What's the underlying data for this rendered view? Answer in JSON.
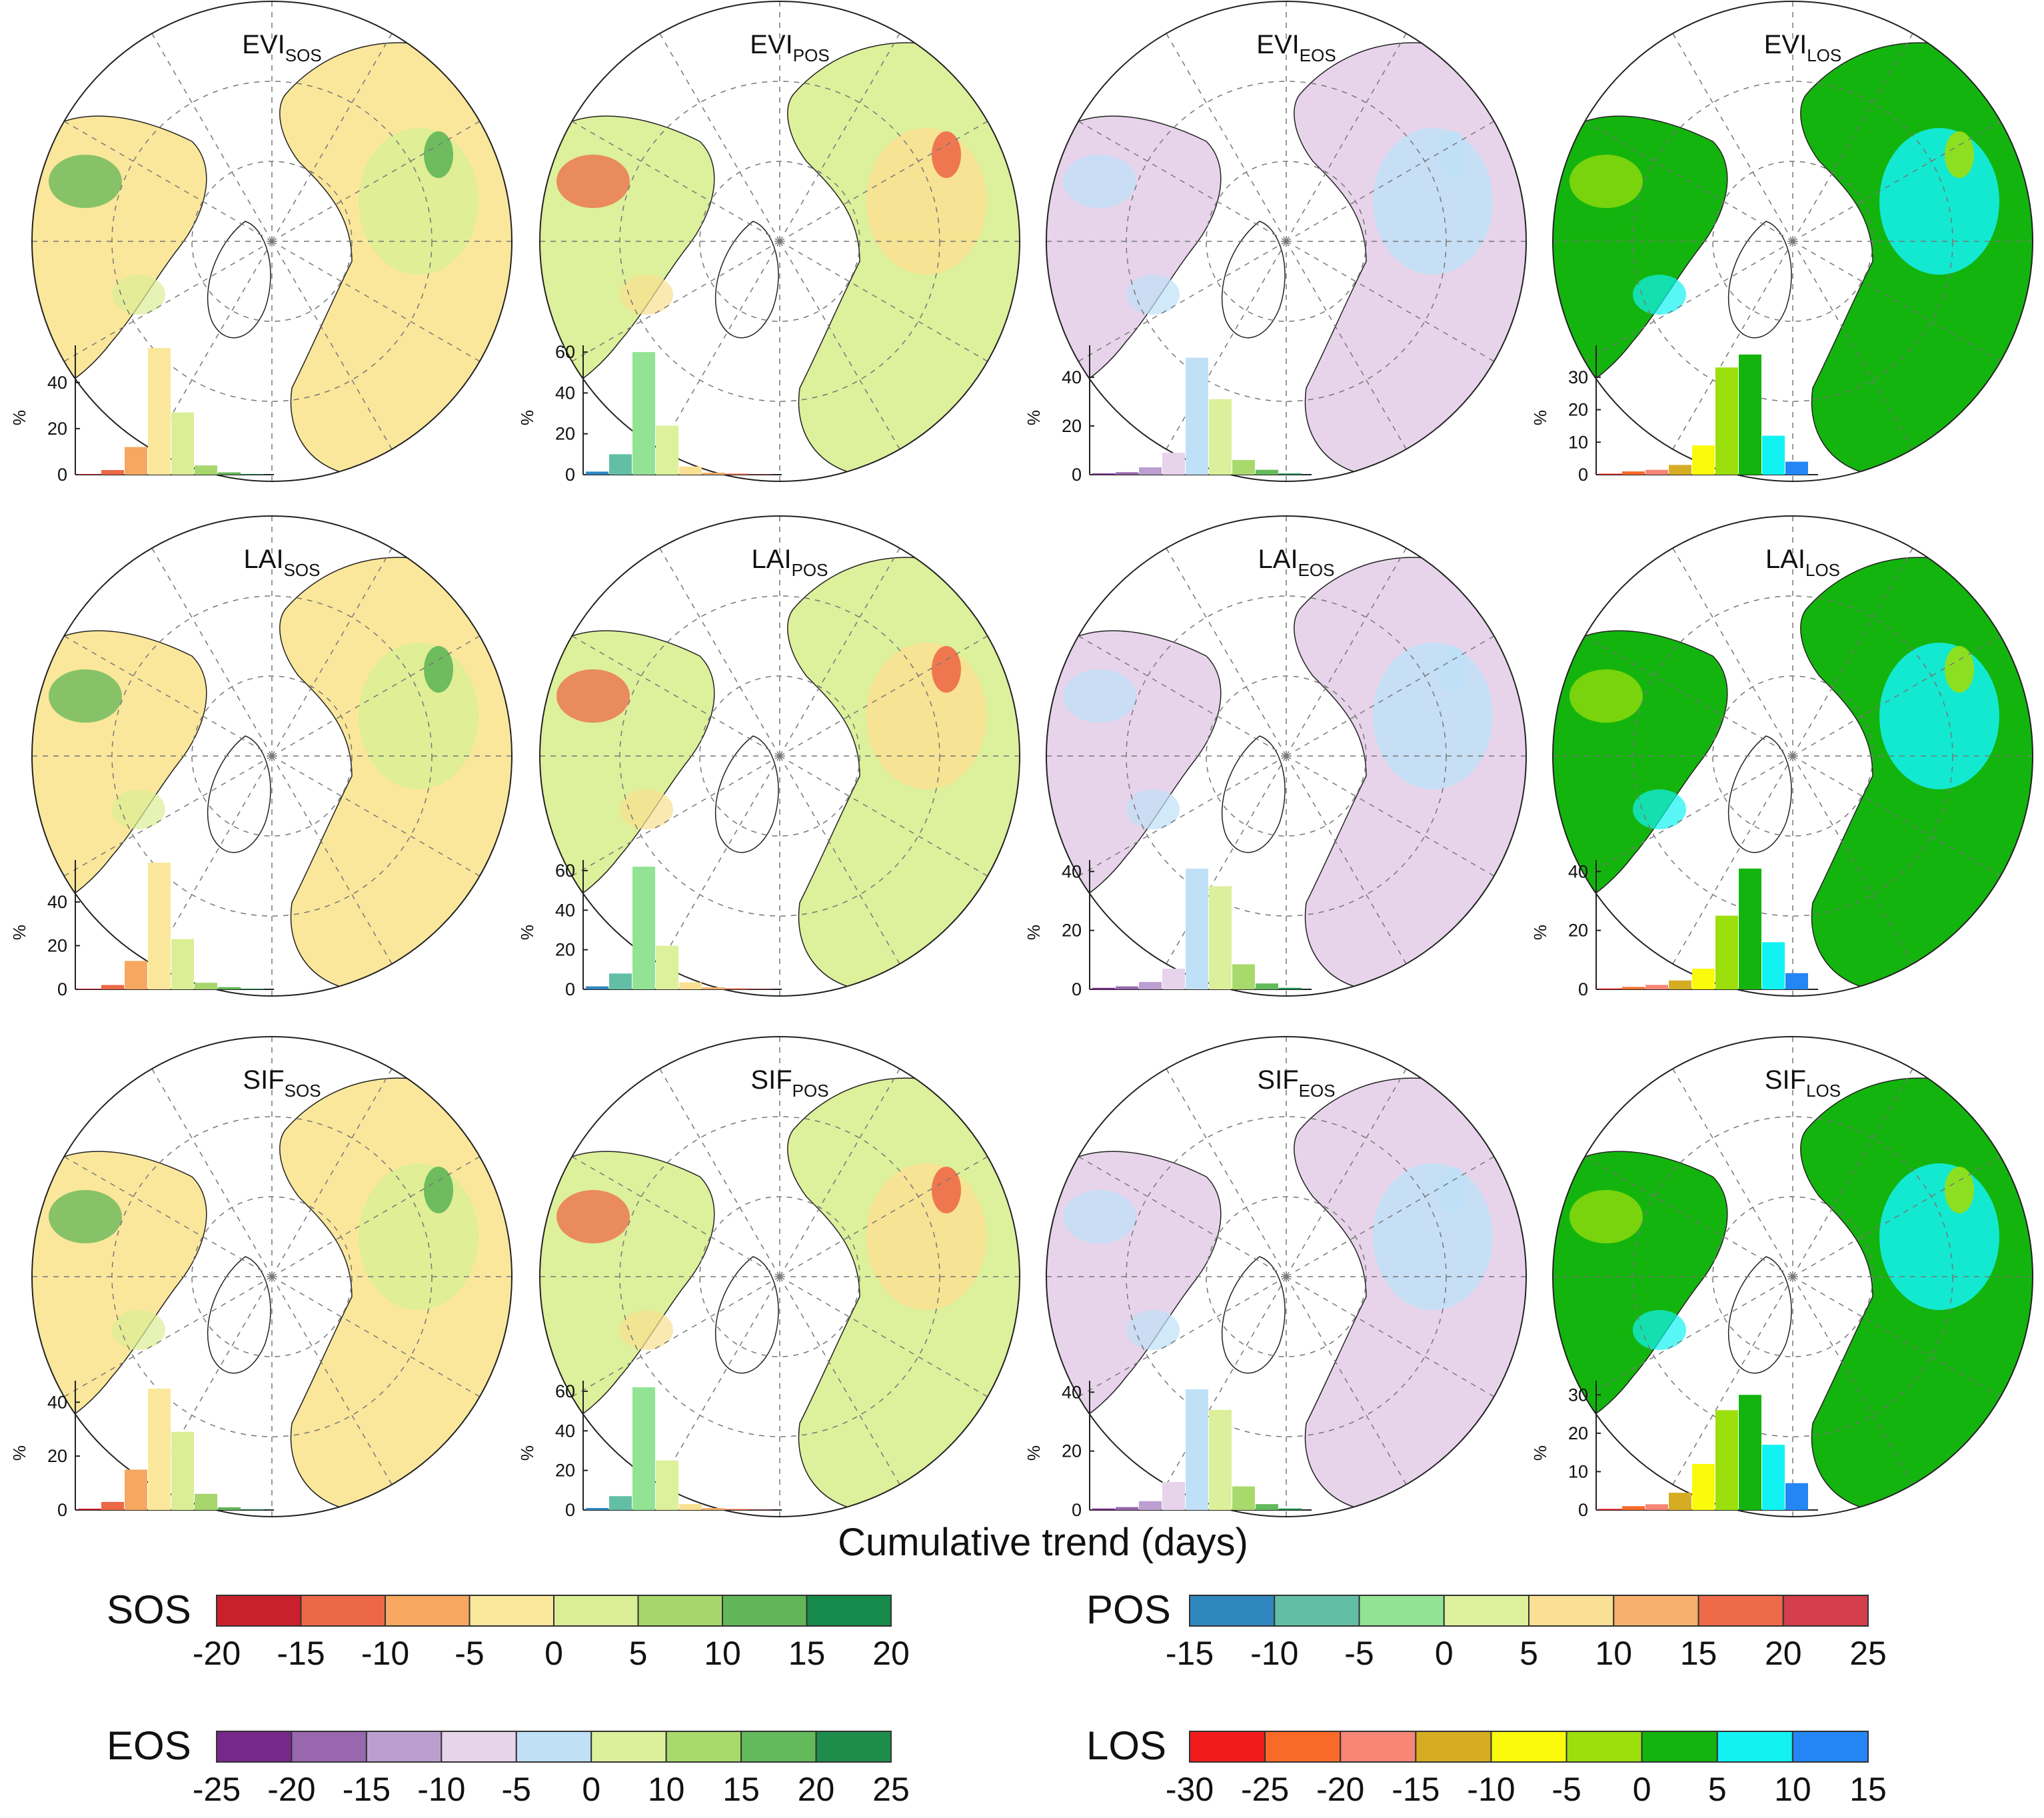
{
  "figure": {
    "axis_title": "Cumulative trend (days)",
    "y_unit": "%"
  },
  "panels": [
    {
      "index": "EVI",
      "sub": "SOS",
      "legend": "SOS"
    },
    {
      "index": "EVI",
      "sub": "POS",
      "legend": "POS"
    },
    {
      "index": "EVI",
      "sub": "EOS",
      "legend": "EOS"
    },
    {
      "index": "EVI",
      "sub": "LOS",
      "legend": "LOS"
    },
    {
      "index": "LAI",
      "sub": "SOS",
      "legend": "SOS"
    },
    {
      "index": "LAI",
      "sub": "POS",
      "legend": "POS"
    },
    {
      "index": "LAI",
      "sub": "EOS",
      "legend": "EOS"
    },
    {
      "index": "LAI",
      "sub": "LOS",
      "legend": "LOS"
    },
    {
      "index": "SIF",
      "sub": "SOS",
      "legend": "SOS"
    },
    {
      "index": "SIF",
      "sub": "POS",
      "legend": "POS"
    },
    {
      "index": "SIF",
      "sub": "EOS",
      "legend": "EOS"
    },
    {
      "index": "SIF",
      "sub": "LOS",
      "legend": "LOS"
    }
  ],
  "legends": {
    "SOS": {
      "label": "SOS",
      "ticks": [
        "-20",
        "-15",
        "-10",
        "-5",
        "0",
        "5",
        "10",
        "15",
        "20"
      ],
      "colors": [
        "#c8212b",
        "#ec6846",
        "#f6a860",
        "#fbe79b",
        "#dbee95",
        "#a7d66c",
        "#62b657",
        "#168a4a"
      ]
    },
    "POS": {
      "label": "POS",
      "ticks": [
        "-15",
        "-10",
        "-5",
        "0",
        "5",
        "10",
        "15",
        "20",
        "25"
      ],
      "colors": [
        "#2f86bf",
        "#62bfa5",
        "#93e395",
        "#ddf09b",
        "#fae092",
        "#f7b06b",
        "#ee6a48",
        "#d43e4d"
      ]
    },
    "EOS": {
      "label": "EOS",
      "ticks": [
        "-25",
        "-20",
        "-15",
        "-10",
        "-5",
        "0",
        "10",
        "15",
        "20",
        "25"
      ],
      "colors": [
        "#76298a",
        "#9867ae",
        "#bc9fd0",
        "#e7d4eb",
        "#bfe0f7",
        "#dcf09b",
        "#a8d96b",
        "#63ba5b",
        "#1e8d4c"
      ]
    },
    "LOS": {
      "label": "LOS",
      "ticks": [
        "-30",
        "-25",
        "-20",
        "-15",
        "-10",
        "-5",
        "0",
        "5",
        "10",
        "15"
      ],
      "colors": [
        "#f11b1b",
        "#f96a29",
        "#f78677",
        "#d6ad22",
        "#fafa0d",
        "#9bdf0d",
        "#14b40e",
        "#12f2f2",
        "#2386f4"
      ]
    }
  },
  "chart_data": [
    {
      "type": "bar",
      "title": "EVI SOS",
      "ylabel": "%",
      "ylim": [
        0,
        55
      ],
      "yticks": [
        0,
        20,
        40
      ],
      "values": [
        0.3,
        2,
        12,
        55,
        27,
        4,
        1,
        0.3
      ],
      "colors_from": "SOS"
    },
    {
      "type": "bar",
      "title": "EVI POS",
      "ylabel": "%",
      "ylim": [
        0,
        62
      ],
      "yticks": [
        0,
        20,
        40,
        60
      ],
      "values": [
        1.5,
        10,
        60,
        24,
        4,
        1,
        0.5,
        0.2
      ],
      "colors_from": "POS"
    },
    {
      "type": "bar",
      "title": "EVI EOS",
      "ylabel": "%",
      "ylim": [
        0,
        52
      ],
      "yticks": [
        0,
        20,
        40
      ],
      "values": [
        0.5,
        1,
        3,
        9,
        48,
        31,
        6,
        2,
        0.5
      ],
      "colors_from": "EOS"
    },
    {
      "type": "bar",
      "title": "EVI LOS",
      "ylabel": "%",
      "ylim": [
        0,
        39
      ],
      "yticks": [
        0,
        10,
        20,
        30
      ],
      "values": [
        0.3,
        1,
        1.5,
        3,
        9,
        33,
        37,
        12,
        4
      ],
      "colors_from": "LOS"
    },
    {
      "type": "bar",
      "title": "LAI SOS",
      "ylabel": "%",
      "ylim": [
        0,
        58
      ],
      "yticks": [
        0,
        20,
        40
      ],
      "values": [
        0.3,
        2,
        13,
        58,
        23,
        3,
        1,
        0.3
      ],
      "colors_from": "SOS"
    },
    {
      "type": "bar",
      "title": "LAI POS",
      "ylabel": "%",
      "ylim": [
        0,
        64
      ],
      "yticks": [
        0,
        20,
        40,
        60
      ],
      "values": [
        1.5,
        8,
        62,
        22,
        3.5,
        1,
        0.5,
        0.2
      ],
      "colors_from": "POS"
    },
    {
      "type": "bar",
      "title": "LAI EOS",
      "ylabel": "%",
      "ylim": [
        0,
        43
      ],
      "yticks": [
        0,
        20,
        40
      ],
      "values": [
        0.5,
        1,
        2.5,
        7,
        41,
        35,
        8.5,
        2,
        0.5
      ],
      "colors_from": "EOS"
    },
    {
      "type": "bar",
      "title": "LAI LOS",
      "ylabel": "%",
      "ylim": [
        0,
        43
      ],
      "yticks": [
        0,
        20,
        40
      ],
      "values": [
        0.3,
        0.8,
        1.5,
        3,
        7,
        25,
        41,
        16,
        5.5
      ],
      "colors_from": "LOS"
    },
    {
      "type": "bar",
      "title": "SIF SOS",
      "ylabel": "%",
      "ylim": [
        0,
        47
      ],
      "yticks": [
        0,
        20,
        40
      ],
      "values": [
        0.5,
        3,
        15,
        45,
        29,
        6,
        1,
        0.3
      ],
      "colors_from": "SOS"
    },
    {
      "type": "bar",
      "title": "SIF POS",
      "ylabel": "%",
      "ylim": [
        0,
        64
      ],
      "yticks": [
        0,
        20,
        40,
        60
      ],
      "values": [
        1,
        7,
        62,
        25,
        3,
        1,
        0.5,
        0.2
      ],
      "colors_from": "POS"
    },
    {
      "type": "bar",
      "title": "SIF EOS",
      "ylabel": "%",
      "ylim": [
        0,
        43
      ],
      "yticks": [
        0,
        20,
        40
      ],
      "values": [
        0.5,
        1,
        3,
        9.5,
        41,
        34,
        8,
        2,
        0.5
      ],
      "colors_from": "EOS"
    },
    {
      "type": "bar",
      "title": "SIF LOS",
      "ylabel": "%",
      "ylim": [
        0,
        33
      ],
      "yticks": [
        0,
        10,
        20,
        30
      ],
      "values": [
        0.3,
        1,
        1.5,
        4.5,
        12,
        26,
        30,
        17,
        7
      ],
      "colors_from": "LOS"
    }
  ]
}
